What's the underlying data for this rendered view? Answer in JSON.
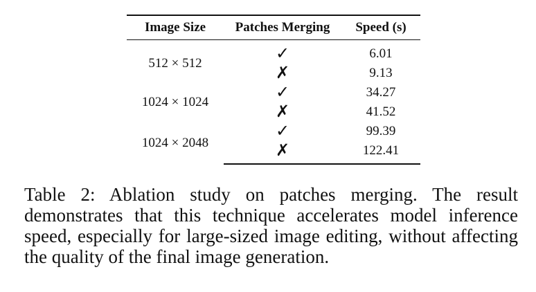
{
  "table": {
    "headers": [
      "Image Size",
      "Patches Merging",
      "Speed (s)"
    ],
    "groups": [
      {
        "size": "512 × 512",
        "rows": [
          {
            "merging": "✓",
            "speed": "6.01"
          },
          {
            "merging": "✗",
            "speed": "9.13"
          }
        ]
      },
      {
        "size": "1024 × 1024",
        "rows": [
          {
            "merging": "✓",
            "speed": "34.27"
          },
          {
            "merging": "✗",
            "speed": "41.52"
          }
        ]
      },
      {
        "size": "1024 × 2048",
        "rows": [
          {
            "merging": "✓",
            "speed": "99.39"
          },
          {
            "merging": "✗",
            "speed": "122.41"
          }
        ]
      }
    ]
  },
  "caption": "Table 2: Ablation study on patches merging. The result demonstrates that this technique accelerates model inference speed, especially for large-sized image editing, without affecting the quality of the final image generation."
}
